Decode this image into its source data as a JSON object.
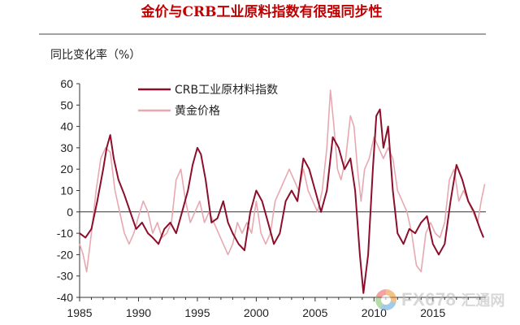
{
  "chart_data": {
    "type": "line",
    "title": "金价与CRB工业原料指数有很强同步性",
    "ylabel": "同比变化率（%）",
    "xlabel": "",
    "ylim": [
      -40,
      60
    ],
    "xlim": [
      1985,
      2019.5
    ],
    "yticks": [
      60,
      50,
      40,
      30,
      20,
      10,
      0,
      -10,
      -20,
      -30,
      -40
    ],
    "xticks": [
      1985,
      1990,
      1995,
      2000,
      2005,
      2010,
      2015
    ],
    "grid": false,
    "legend_position": "top-left",
    "series": [
      {
        "name": "CRB工业原材料指数",
        "color": "#8b0f2a",
        "points": [
          [
            1985.0,
            -10
          ],
          [
            1985.5,
            -12
          ],
          [
            1986.0,
            -8
          ],
          [
            1986.5,
            5
          ],
          [
            1987.0,
            20
          ],
          [
            1987.3,
            30
          ],
          [
            1987.6,
            36
          ],
          [
            1987.9,
            25
          ],
          [
            1988.3,
            15
          ],
          [
            1988.8,
            8
          ],
          [
            1989.3,
            0
          ],
          [
            1989.8,
            -8
          ],
          [
            1990.3,
            -5
          ],
          [
            1990.8,
            -10
          ],
          [
            1991.2,
            -12
          ],
          [
            1991.7,
            -15
          ],
          [
            1992.2,
            -8
          ],
          [
            1992.7,
            -5
          ],
          [
            1993.2,
            -10
          ],
          [
            1993.7,
            0
          ],
          [
            1994.2,
            10
          ],
          [
            1994.6,
            22
          ],
          [
            1995.0,
            30
          ],
          [
            1995.3,
            27
          ],
          [
            1995.7,
            15
          ],
          [
            1996.2,
            -5
          ],
          [
            1996.7,
            -3
          ],
          [
            1997.2,
            5
          ],
          [
            1997.6,
            -5
          ],
          [
            1998.0,
            -10
          ],
          [
            1998.5,
            -15
          ],
          [
            1999.0,
            -18
          ],
          [
            1999.5,
            0
          ],
          [
            2000.0,
            10
          ],
          [
            2000.5,
            5
          ],
          [
            2001.0,
            -5
          ],
          [
            2001.5,
            -15
          ],
          [
            2002.0,
            -10
          ],
          [
            2002.5,
            5
          ],
          [
            2003.0,
            10
          ],
          [
            2003.5,
            5
          ],
          [
            2004.0,
            25
          ],
          [
            2004.5,
            20
          ],
          [
            2005.0,
            10
          ],
          [
            2005.5,
            0
          ],
          [
            2006.0,
            10
          ],
          [
            2006.5,
            35
          ],
          [
            2007.0,
            30
          ],
          [
            2007.5,
            20
          ],
          [
            2008.0,
            25
          ],
          [
            2008.4,
            10
          ],
          [
            2008.8,
            -20
          ],
          [
            2009.1,
            -38
          ],
          [
            2009.5,
            -20
          ],
          [
            2009.9,
            20
          ],
          [
            2010.2,
            45
          ],
          [
            2010.5,
            48
          ],
          [
            2010.8,
            30
          ],
          [
            2011.2,
            40
          ],
          [
            2011.6,
            10
          ],
          [
            2012.0,
            -10
          ],
          [
            2012.5,
            -15
          ],
          [
            2013.0,
            -8
          ],
          [
            2013.5,
            -10
          ],
          [
            2014.0,
            -5
          ],
          [
            2014.5,
            -2
          ],
          [
            2015.0,
            -15
          ],
          [
            2015.5,
            -20
          ],
          [
            2016.0,
            -15
          ],
          [
            2016.5,
            5
          ],
          [
            2017.0,
            22
          ],
          [
            2017.5,
            15
          ],
          [
            2018.0,
            5
          ],
          [
            2018.5,
            0
          ],
          [
            2019.0,
            -8
          ],
          [
            2019.3,
            -12
          ]
        ]
      },
      {
        "name": "黄金价格",
        "color": "#e8a8b0",
        "points": [
          [
            1985.0,
            -15
          ],
          [
            1985.3,
            -20
          ],
          [
            1985.6,
            -28
          ],
          [
            1986.0,
            -10
          ],
          [
            1986.4,
            10
          ],
          [
            1986.8,
            25
          ],
          [
            1987.2,
            30
          ],
          [
            1987.6,
            28
          ],
          [
            1988.0,
            10
          ],
          [
            1988.4,
            0
          ],
          [
            1988.8,
            -10
          ],
          [
            1989.2,
            -15
          ],
          [
            1989.6,
            -10
          ],
          [
            1990.0,
            -2
          ],
          [
            1990.4,
            5
          ],
          [
            1990.8,
            0
          ],
          [
            1991.2,
            -10
          ],
          [
            1991.6,
            -5
          ],
          [
            1992.0,
            -12
          ],
          [
            1992.4,
            -10
          ],
          [
            1992.8,
            -5
          ],
          [
            1993.2,
            15
          ],
          [
            1993.6,
            20
          ],
          [
            1994.0,
            5
          ],
          [
            1994.4,
            -5
          ],
          [
            1994.8,
            0
          ],
          [
            1995.2,
            5
          ],
          [
            1995.6,
            -5
          ],
          [
            1996.0,
            0
          ],
          [
            1996.4,
            -5
          ],
          [
            1996.8,
            -10
          ],
          [
            1997.2,
            -15
          ],
          [
            1997.6,
            -20
          ],
          [
            1998.0,
            -15
          ],
          [
            1998.4,
            -5
          ],
          [
            1998.8,
            -10
          ],
          [
            1999.2,
            -5
          ],
          [
            1999.6,
            -10
          ],
          [
            2000.0,
            5
          ],
          [
            2000.4,
            -10
          ],
          [
            2000.8,
            -15
          ],
          [
            2001.2,
            -10
          ],
          [
            2001.6,
            5
          ],
          [
            2002.0,
            10
          ],
          [
            2002.4,
            15
          ],
          [
            2002.8,
            20
          ],
          [
            2003.2,
            15
          ],
          [
            2003.6,
            10
          ],
          [
            2004.0,
            20
          ],
          [
            2004.4,
            10
          ],
          [
            2004.8,
            5
          ],
          [
            2005.2,
            0
          ],
          [
            2005.6,
            10
          ],
          [
            2006.0,
            30
          ],
          [
            2006.3,
            57
          ],
          [
            2006.6,
            40
          ],
          [
            2006.9,
            20
          ],
          [
            2007.2,
            15
          ],
          [
            2007.6,
            25
          ],
          [
            2008.0,
            45
          ],
          [
            2008.3,
            40
          ],
          [
            2008.6,
            20
          ],
          [
            2008.9,
            5
          ],
          [
            2009.2,
            20
          ],
          [
            2009.6,
            25
          ],
          [
            2010.0,
            35
          ],
          [
            2010.4,
            30
          ],
          [
            2010.8,
            25
          ],
          [
            2011.2,
            30
          ],
          [
            2011.6,
            25
          ],
          [
            2012.0,
            10
          ],
          [
            2012.4,
            5
          ],
          [
            2012.8,
            0
          ],
          [
            2013.2,
            -10
          ],
          [
            2013.6,
            -25
          ],
          [
            2014.0,
            -28
          ],
          [
            2014.4,
            -10
          ],
          [
            2014.8,
            -5
          ],
          [
            2015.2,
            -10
          ],
          [
            2015.6,
            -12
          ],
          [
            2016.0,
            -5
          ],
          [
            2016.4,
            15
          ],
          [
            2016.8,
            20
          ],
          [
            2017.2,
            5
          ],
          [
            2017.6,
            10
          ],
          [
            2018.0,
            5
          ],
          [
            2018.4,
            0
          ],
          [
            2018.8,
            -5
          ],
          [
            2019.1,
            5
          ],
          [
            2019.4,
            13
          ]
        ]
      }
    ]
  }
}
